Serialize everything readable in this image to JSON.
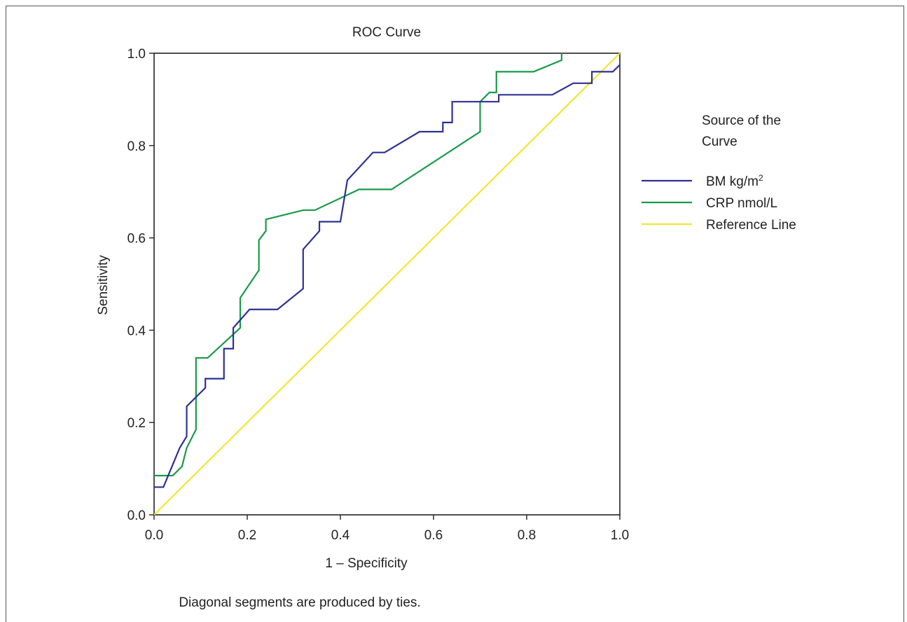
{
  "chart_data": {
    "type": "line",
    "title": "ROC Curve",
    "xlabel": "1 – Specificity",
    "ylabel": "Sensitivity",
    "xlim": [
      0,
      1
    ],
    "ylim": [
      0,
      1
    ],
    "xticks": [
      "0.0",
      "0.2",
      "0.4",
      "0.6",
      "0.8",
      "1.0"
    ],
    "yticks": [
      "0.0",
      "0.2",
      "0.4",
      "0.6",
      "0.8",
      "1.0"
    ],
    "grid": false,
    "legend_title": "Source of the Curve",
    "legend_placement": "right",
    "footnote": "Diagonal segments are produced by ties.",
    "series": [
      {
        "name": "BM kg/m",
        "name_superscript": "2",
        "color": "#2e3192",
        "points": [
          [
            0.0,
            0.06
          ],
          [
            0.02,
            0.06
          ],
          [
            0.055,
            0.145
          ],
          [
            0.07,
            0.17
          ],
          [
            0.07,
            0.235
          ],
          [
            0.11,
            0.275
          ],
          [
            0.11,
            0.295
          ],
          [
            0.15,
            0.295
          ],
          [
            0.15,
            0.36
          ],
          [
            0.17,
            0.36
          ],
          [
            0.17,
            0.405
          ],
          [
            0.205,
            0.445
          ],
          [
            0.265,
            0.445
          ],
          [
            0.32,
            0.49
          ],
          [
            0.32,
            0.575
          ],
          [
            0.355,
            0.615
          ],
          [
            0.355,
            0.635
          ],
          [
            0.4,
            0.635
          ],
          [
            0.415,
            0.725
          ],
          [
            0.47,
            0.785
          ],
          [
            0.495,
            0.785
          ],
          [
            0.57,
            0.83
          ],
          [
            0.62,
            0.83
          ],
          [
            0.62,
            0.85
          ],
          [
            0.64,
            0.85
          ],
          [
            0.64,
            0.895
          ],
          [
            0.74,
            0.895
          ],
          [
            0.74,
            0.91
          ],
          [
            0.855,
            0.91
          ],
          [
            0.9,
            0.935
          ],
          [
            0.94,
            0.935
          ],
          [
            0.94,
            0.96
          ],
          [
            0.985,
            0.96
          ],
          [
            1.0,
            0.975
          ]
        ]
      },
      {
        "name": "CRP nmol/L",
        "color": "#1a9a4a",
        "points": [
          [
            0.0,
            0.085
          ],
          [
            0.04,
            0.085
          ],
          [
            0.06,
            0.105
          ],
          [
            0.07,
            0.145
          ],
          [
            0.09,
            0.185
          ],
          [
            0.09,
            0.34
          ],
          [
            0.115,
            0.34
          ],
          [
            0.185,
            0.405
          ],
          [
            0.185,
            0.47
          ],
          [
            0.225,
            0.53
          ],
          [
            0.225,
            0.595
          ],
          [
            0.24,
            0.615
          ],
          [
            0.24,
            0.64
          ],
          [
            0.32,
            0.66
          ],
          [
            0.345,
            0.66
          ],
          [
            0.44,
            0.705
          ],
          [
            0.51,
            0.705
          ],
          [
            0.7,
            0.83
          ],
          [
            0.7,
            0.895
          ],
          [
            0.72,
            0.915
          ],
          [
            0.735,
            0.915
          ],
          [
            0.735,
            0.96
          ],
          [
            0.815,
            0.96
          ],
          [
            0.875,
            0.985
          ],
          [
            0.875,
            1.0
          ]
        ]
      },
      {
        "name": "Reference Line",
        "color": "#f2e633",
        "points": [
          [
            0,
            0
          ],
          [
            1,
            1
          ]
        ]
      }
    ]
  }
}
